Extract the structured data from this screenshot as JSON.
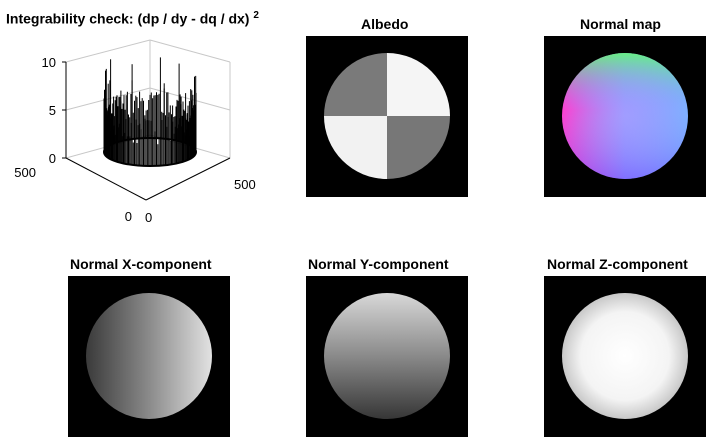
{
  "figure": {
    "panels": [
      {
        "id": "integrability",
        "title": "Integrability check: (dp / dy - dq / dx)",
        "title_sup": "2"
      },
      {
        "id": "albedo",
        "title": "Albedo"
      },
      {
        "id": "normal_map",
        "title": "Normal map"
      },
      {
        "id": "normal_x",
        "title": "Normal X-component"
      },
      {
        "id": "normal_y",
        "title": "Normal Y-component"
      },
      {
        "id": "normal_z",
        "title": "Normal Z-component"
      }
    ]
  },
  "chart_data": [
    {
      "type": "surface",
      "title": "Integrability check: (dp / dy - dq / dx) 2",
      "z_ticks": [
        "0",
        "5",
        "10"
      ],
      "x_ticks": [
        "0",
        "500"
      ],
      "y_ticks": [
        "0",
        "500"
      ],
      "zlim": [
        0,
        10
      ],
      "xlim": [
        0,
        500
      ],
      "ylim": [
        0,
        500
      ],
      "description_values": {
        "ring_base_height": 2.5,
        "spike_max": 10
      }
    },
    {
      "type": "heatmap",
      "title": "Albedo",
      "colormap": "gray",
      "quadrants": {
        "top_left": 0.55,
        "top_right": 0.95,
        "bottom_left": 0.95,
        "bottom_right": 0.55
      }
    },
    {
      "type": "heatmap",
      "title": "Normal map",
      "colormap": "rgb"
    },
    {
      "type": "heatmap",
      "title": "Normal X-component",
      "colormap": "gray",
      "gradient": "left-to-right"
    },
    {
      "type": "heatmap",
      "title": "Normal Y-component",
      "colormap": "gray",
      "gradient": "top-to-bottom"
    },
    {
      "type": "heatmap",
      "title": "Normal Z-component",
      "colormap": "gray",
      "gradient": "center-bright"
    }
  ]
}
